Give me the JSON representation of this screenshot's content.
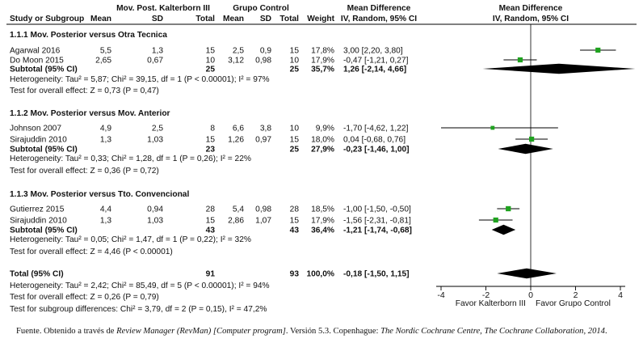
{
  "header": {
    "group1": "Mov. Post. Kalterborn III",
    "group2": "Grupo Control",
    "md_title": "Mean Difference",
    "md_method": "IV, Random, 95% CI",
    "plot_title": "Mean Difference",
    "plot_method": "IV, Random, 95% CI",
    "cols": {
      "study": "Study or Subgroup",
      "mean": "Mean",
      "sd": "SD",
      "total": "Total",
      "weight": "Weight"
    }
  },
  "subgroups": [
    {
      "title": "1.1.1 Mov. Posterior versus Otra Tecnica",
      "studies": [
        {
          "name": "Agarwal 2016",
          "m1": "5,5",
          "sd1": "1,3",
          "n1": "15",
          "m2": "2,5",
          "sd2": "0,9",
          "n2": "15",
          "weight": "17,8%",
          "ci": "3,00 [2,20, 3,80]"
        },
        {
          "name": "Do Moon 2015",
          "m1": "2,65",
          "sd1": "0,67",
          "n1": "10",
          "m2": "3,12",
          "sd2": "0,98",
          "n2": "10",
          "weight": "17,9%",
          "ci": "-0,47 [-1,21, 0,27]"
        }
      ],
      "subtotal": {
        "label": "Subtotal (95% CI)",
        "n1": "25",
        "n2": "25",
        "weight": "35,7%",
        "ci": "1,26 [-2,14, 4,66]"
      },
      "het": "Heterogeneity: Tau² = 5,87; Chi² = 39,15, df = 1 (P < 0.00001); I² = 97%",
      "test": "Test for overall effect: Z = 0,73 (P = 0,47)"
    },
    {
      "title": "1.1.2 Mov. Posterior versus Mov. Anterior",
      "studies": [
        {
          "name": "Johnson 2007",
          "m1": "4,9",
          "sd1": "2,5",
          "n1": "8",
          "m2": "6,6",
          "sd2": "3,8",
          "n2": "10",
          "weight": "9,9%",
          "ci": "-1,70 [-4,62, 1,22]"
        },
        {
          "name": "Sirajuddin 2010",
          "m1": "1,3",
          "sd1": "1,03",
          "n1": "15",
          "m2": "1,26",
          "sd2": "0,97",
          "n2": "15",
          "weight": "18,0%",
          "ci": "0,04 [-0,68, 0,76]"
        }
      ],
      "subtotal": {
        "label": "Subtotal (95% CI)",
        "n1": "23",
        "n2": "25",
        "weight": "27,9%",
        "ci": "-0,23 [-1,46, 1,00]"
      },
      "het": "Heterogeneity: Tau² = 0,33; Chi² = 1,28, df = 1 (P = 0,26); I² = 22%",
      "test": "Test for overall effect: Z = 0,36 (P = 0,72)"
    },
    {
      "title": "1.1.3 Mov. Posterior versus Tto. Convencional",
      "studies": [
        {
          "name": "Gutierrez  2015",
          "m1": "4,4",
          "sd1": "0,94",
          "n1": "28",
          "m2": "5,4",
          "sd2": "0,98",
          "n2": "28",
          "weight": "18,5%",
          "ci": "-1,00 [-1,50, -0,50]"
        },
        {
          "name": "Sirajuddin 2010",
          "m1": "1,3",
          "sd1": "1,03",
          "n1": "15",
          "m2": "2,86",
          "sd2": "1,07",
          "n2": "15",
          "weight": "17,9%",
          "ci": "-1,56 [-2,31, -0,81]"
        }
      ],
      "subtotal": {
        "label": "Subtotal (95% CI)",
        "n1": "43",
        "n2": "43",
        "weight": "36,4%",
        "ci": "-1,21 [-1,74, -0,68]"
      },
      "het": "Heterogeneity: Tau² = 0,05; Chi² = 1,47, df = 1 (P = 0,22); I² = 32%",
      "test": "Test for overall effect: Z = 4,46 (P < 0.00001)"
    }
  ],
  "total": {
    "label": "Total (95% CI)",
    "n1": "91",
    "n2": "93",
    "weight": "100,0%",
    "ci": "-0,18 [-1,50, 1,15]",
    "het": "Heterogeneity: Tau² = 2,42; Chi² = 85,49, df = 5 (P < 0.00001); I² = 94%",
    "test": "Test for overall effect: Z = 0,26 (P = 0,79)",
    "subgroup_test": "Test for subgroup differences: Chi² = 3,79, df = 2 (P = 0,15), I² = 47,2%"
  },
  "axis": {
    "ticks": [
      "-4",
      "-2",
      "0",
      "2",
      "4"
    ],
    "left_label": "Favor Kalterborn III",
    "right_label": "Favor Grupo Control"
  },
  "caption": {
    "label": "Fuente.",
    "pre": "Obtenido a través de",
    "title": "Review Manager (RevMan) [Computer program]",
    "mid": ". Versión 5.3. Copenhague:",
    "org": "The Nordic Cochrane Centre, The Cochrane Collaboration, 2014",
    "end": "."
  },
  "colors": {
    "square": "#1fa21f",
    "diamond": "#000000",
    "line": "#000000"
  },
  "chart_data": {
    "type": "forest",
    "xlim": [
      -4,
      4
    ],
    "xticks": [
      -4,
      -2,
      0,
      2,
      4
    ],
    "studies": [
      {
        "name": "Agarwal 2016",
        "md": 3.0,
        "lo": 2.2,
        "hi": 3.8,
        "weight": 17.8
      },
      {
        "name": "Do Moon 2015",
        "md": -0.47,
        "lo": -1.21,
        "hi": 0.27,
        "weight": 17.9
      },
      {
        "name": "Johnson 2007",
        "md": -1.7,
        "lo": -4.62,
        "hi": 1.22,
        "weight": 9.9
      },
      {
        "name": "Sirajuddin 2010",
        "md": 0.04,
        "lo": -0.68,
        "hi": 0.76,
        "weight": 18.0
      },
      {
        "name": "Gutierrez  2015",
        "md": -1.0,
        "lo": -1.5,
        "hi": -0.5,
        "weight": 18.5
      },
      {
        "name": "Sirajuddin 2010",
        "md": -1.56,
        "lo": -2.31,
        "hi": -0.81,
        "weight": 17.9
      }
    ],
    "subtotals": [
      {
        "label": "Subtotal (95% CI)",
        "md": 1.26,
        "lo": -2.14,
        "hi": 4.66
      },
      {
        "label": "Subtotal (95% CI)",
        "md": -0.23,
        "lo": -1.46,
        "hi": 1.0
      },
      {
        "label": "Subtotal (95% CI)",
        "md": -1.21,
        "lo": -1.74,
        "hi": -0.68
      }
    ],
    "total": {
      "label": "Total (95% CI)",
      "md": -0.18,
      "lo": -1.5,
      "hi": 1.15
    }
  }
}
